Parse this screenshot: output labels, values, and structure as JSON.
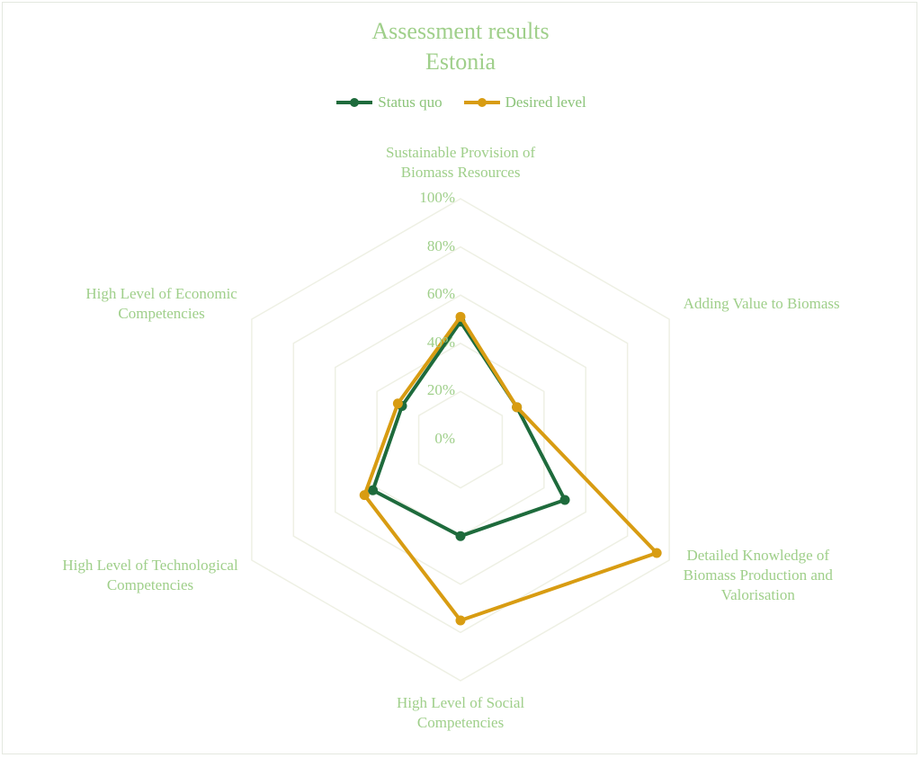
{
  "chart_data": {
    "type": "radar",
    "title": "Assessment results",
    "subtitle": "Estonia",
    "categories": [
      "Sustainable Provision of Biomass Resources",
      "Adding Value to Biomass",
      "Detailed Knowledge of Biomass Production and Valorisation",
      "High Level of Social Competencies",
      "High Level of Technological Competencies",
      "High Level of Economic Competencies"
    ],
    "category_lines": [
      [
        "Sustainable Provision of",
        "Biomass Resources"
      ],
      [
        "Adding Value to Biomass"
      ],
      [
        "Detailed Knowledge of",
        "Biomass Production and",
        "Valorisation"
      ],
      [
        "High Level of Social",
        "Competencies"
      ],
      [
        "High Level of Technological",
        "Competencies"
      ],
      [
        "High Level of Economic",
        "Competencies"
      ]
    ],
    "series": [
      {
        "name": "Status quo",
        "color": "#1e6b3c",
        "values": [
          49,
          27,
          50,
          40,
          42,
          28
        ]
      },
      {
        "name": "Desired level",
        "color": "#d89c12",
        "values": [
          51,
          27,
          94,
          75,
          46,
          30
        ]
      }
    ],
    "ticks": [
      "0%",
      "20%",
      "40%",
      "60%",
      "80%",
      "100%"
    ],
    "range": [
      0,
      100
    ],
    "legend_position": "top",
    "grid_color": "#eef0e4",
    "text_color": "#9fcf8a"
  }
}
